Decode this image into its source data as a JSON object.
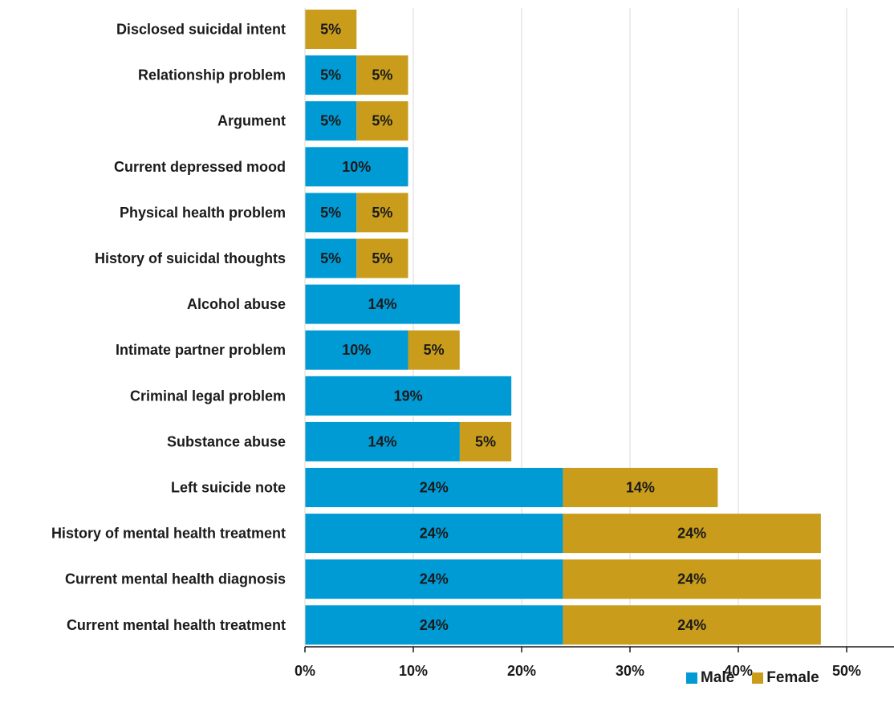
{
  "chart_data": {
    "type": "bar",
    "orientation": "horizontal",
    "stacked": true,
    "categories": [
      "Disclosed suicidal intent",
      "Relationship problem",
      "Argument",
      "Current depressed mood",
      "Physical health problem",
      "History of suicidal thoughts",
      "Alcohol abuse",
      "Intimate partner problem",
      "Criminal legal problem",
      "Substance abuse",
      "Left suicide note",
      "History of mental health treatment",
      "Current mental health diagnosis",
      "Current mental health treatment"
    ],
    "series": [
      {
        "name": "Male",
        "color": "#009ad4",
        "values": [
          0,
          4.76,
          4.76,
          9.52,
          4.76,
          4.76,
          14.29,
          9.52,
          19.05,
          14.29,
          23.81,
          23.81,
          23.81,
          23.81
        ],
        "labels": [
          "",
          "5%",
          "5%",
          "10%",
          "5%",
          "5%",
          "14%",
          "10%",
          "19%",
          "14%",
          "24%",
          "24%",
          "24%",
          "24%"
        ]
      },
      {
        "name": "Female",
        "color": "#c99c1b",
        "values": [
          4.76,
          4.76,
          4.76,
          0,
          4.76,
          4.76,
          0,
          4.76,
          0,
          4.76,
          14.29,
          23.81,
          23.81,
          23.81
        ],
        "labels": [
          "5%",
          "5%",
          "5%",
          "",
          "5%",
          "5%",
          "",
          "5%",
          "",
          "5%",
          "14%",
          "24%",
          "24%",
          "24%"
        ]
      }
    ],
    "xlim": [
      0,
      54
    ],
    "xticks": [
      0,
      10,
      20,
      30,
      40,
      50
    ],
    "xtick_labels": [
      "0%",
      "10%",
      "20%",
      "30%",
      "40%",
      "50%"
    ],
    "grid": true,
    "legend_position": "bottom-right"
  },
  "legend": {
    "male": "Male",
    "female": "Female"
  }
}
